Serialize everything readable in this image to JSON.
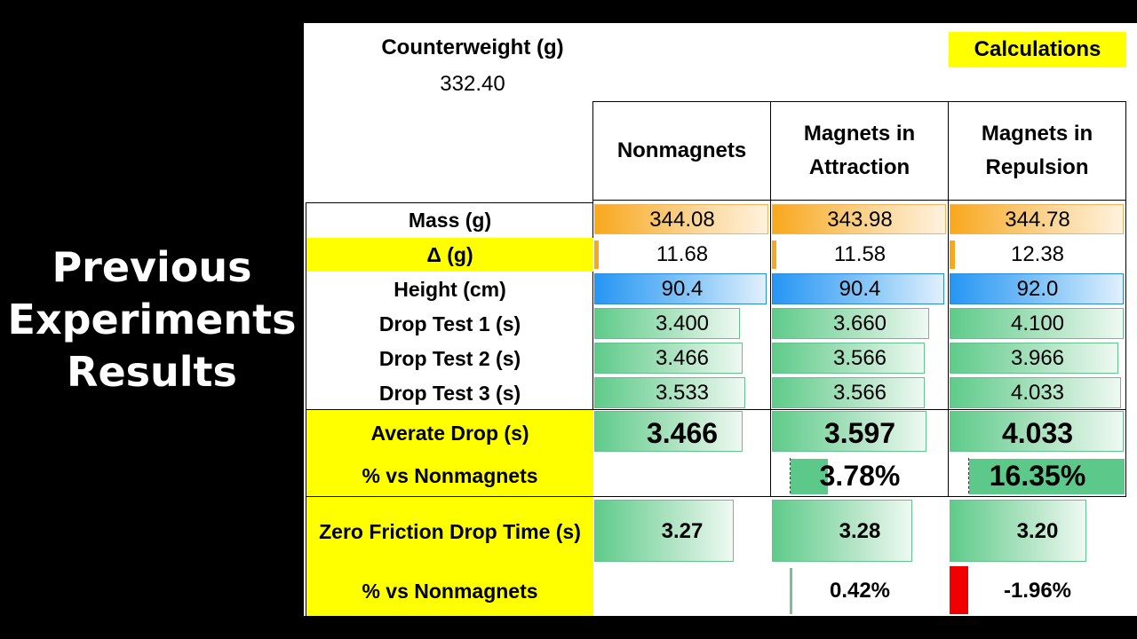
{
  "slide_title": [
    "Previous",
    "Experiments",
    "Results"
  ],
  "counterweight": {
    "label": "Counterweight (g)",
    "value": "332.40"
  },
  "calculations_button": "Calculations",
  "columns": [
    "Nonmagnets",
    [
      "Magnets in",
      "Attraction"
    ],
    [
      "Magnets in",
      "Repulsion"
    ]
  ],
  "rows": {
    "mass": {
      "label": "Mass (g)",
      "values": [
        "344.08",
        "343.98",
        "344.78"
      ]
    },
    "delta": {
      "label": "Δ (g)",
      "values": [
        "11.68",
        "11.58",
        "12.38"
      ]
    },
    "height": {
      "label": "Height (cm)",
      "values": [
        "90.4",
        "90.4",
        "92.0"
      ]
    },
    "drop1": {
      "label": "Drop Test 1 (s)",
      "values": [
        "3.400",
        "3.660",
        "4.100"
      ]
    },
    "drop2": {
      "label": "Drop Test 2 (s)",
      "values": [
        "3.466",
        "3.566",
        "3.966"
      ]
    },
    "drop3": {
      "label": "Drop Test 3 (s)",
      "values": [
        "3.533",
        "3.566",
        "4.033"
      ]
    },
    "average": {
      "label": "Averate Drop (s)",
      "values": [
        "3.466",
        "3.597",
        "4.033"
      ]
    },
    "pct": {
      "label": "% vs Nonmagnets",
      "values": [
        "",
        "3.78%",
        "16.35%"
      ]
    },
    "zero_friction": {
      "label": "Zero Friction Drop Time (s)",
      "values": [
        "3.27",
        "3.28",
        "3.20"
      ]
    },
    "pct_zero": {
      "label": "% vs Nonmagnets",
      "values": [
        "",
        "0.42%",
        "-1.96%"
      ]
    }
  },
  "colors": {
    "highlight_yellow": "#ffff00",
    "mass_bar": "#f8a81d",
    "height_bar": "#2796f3",
    "drop_bar": "#5fcb8a",
    "negative_bar": "#f00000"
  }
}
